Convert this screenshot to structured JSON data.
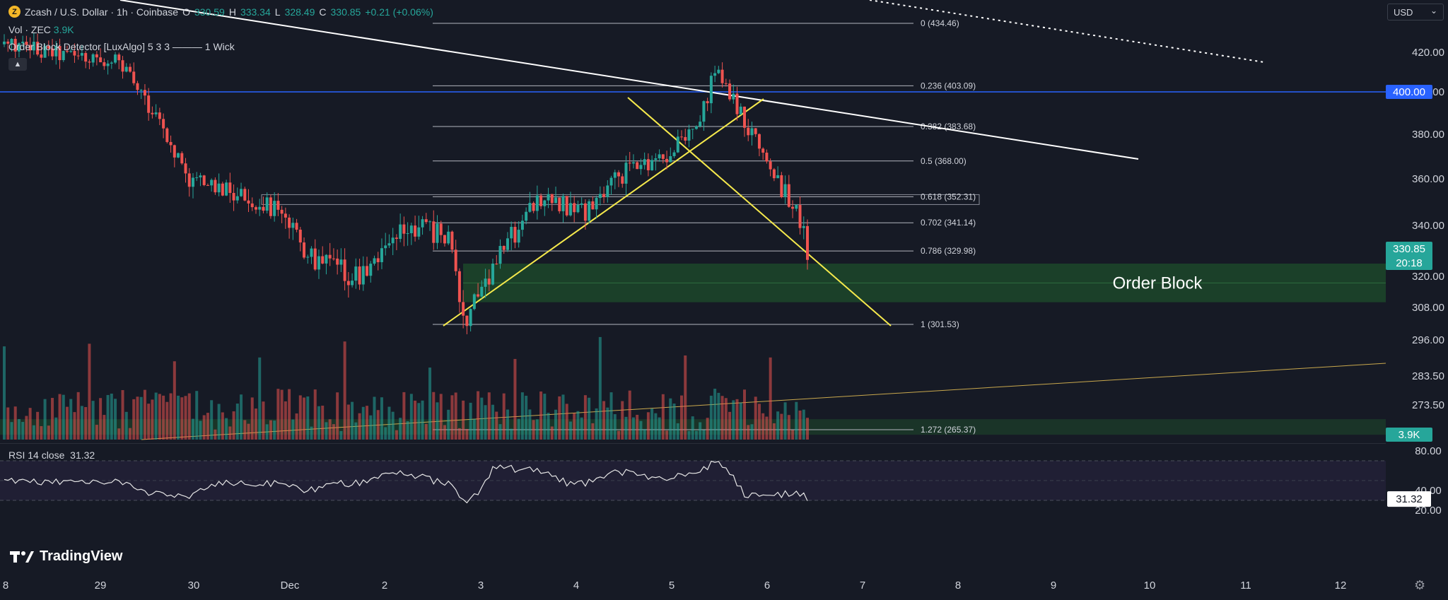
{
  "header": {
    "symbol_icon": "Z",
    "title": "Zcash / U.S. Dollar · 1h · Coinbase",
    "open_label": "O",
    "open_value": "330.59",
    "high_label": "H",
    "high_value": "333.34",
    "low_label": "L",
    "low_value": "328.49",
    "close_label": "C",
    "close_value": "330.85",
    "change": "+0.21 (+0.06%)"
  },
  "volume_legend": {
    "label": "Vol · ZEC",
    "value": "3.9K"
  },
  "indicator_legend": {
    "label": "Order Block Detector [LuxAlgo] 5 3 3 ——— 1 Wick"
  },
  "rsi_legend": {
    "label": "RSI 14 close",
    "value": "31.32"
  },
  "currency_select": {
    "value": "USD"
  },
  "brand": {
    "name": "TradingView"
  },
  "icons": {
    "collapse": "chevron-up-icon",
    "settings": "gear-icon"
  },
  "colors": {
    "up": "#26a69a",
    "down": "#ef5350",
    "blue_line": "#2962ff",
    "fib": "#b2b5be",
    "yellow": "#f5e94c",
    "order_block": "#1e4d2b",
    "rsi_band": "#2a2541"
  },
  "chart_data": {
    "type": "candlestick",
    "symbol": "ZEC/USD",
    "interval": "1h",
    "price_axis": {
      "ticks": [
        "420.00",
        "400.00",
        "380.00",
        "360.00",
        "340.00",
        "320.00",
        "308.00",
        "296.00",
        "283.50",
        "273.50",
        "0"
      ],
      "tick_values": [
        420,
        400,
        380,
        360,
        340,
        320,
        308,
        296,
        283.5,
        273.5,
        264
      ],
      "badges": [
        {
          "label": "400.00",
          "value": 400,
          "color": "#2962ff"
        },
        {
          "label": "330.85",
          "sub": "20:18",
          "value": 330.85,
          "color": "#26a69a"
        },
        {
          "label": "3.9K",
          "value": 264,
          "color": "#26a69a"
        }
      ]
    },
    "time_axis": {
      "ticks": [
        "8",
        "29",
        "30",
        "Dec",
        "2",
        "3",
        "4",
        "5",
        "6",
        "7",
        "8",
        "9",
        "10",
        "11",
        "12"
      ]
    },
    "fib_levels": [
      {
        "label": "0 (434.46)",
        "value": 434.46
      },
      {
        "label": "0.236 (403.09)",
        "value": 403.09
      },
      {
        "label": "0.382 (383.68)",
        "value": 383.68
      },
      {
        "label": "0.5 (368.00)",
        "value": 368.0
      },
      {
        "label": "0.618 (352.31)",
        "value": 352.31
      },
      {
        "label": "0.702 (341.14)",
        "value": 341.14
      },
      {
        "label": "0.786 (329.98)",
        "value": 329.98
      },
      {
        "label": "1 (301.53)",
        "value": 301.53
      },
      {
        "label": "1.272 (265.37)",
        "value": 265.37
      }
    ],
    "order_block": {
      "label": "Order Block",
      "top": 325,
      "bottom": 310
    },
    "horizontal_line": 400,
    "rsi": {
      "period": 14,
      "last": 31.32,
      "axis_ticks": [
        "80.00",
        "40.00",
        "20.00"
      ],
      "axis_values": [
        80,
        40,
        20
      ],
      "band": [
        30,
        70
      ]
    }
  }
}
